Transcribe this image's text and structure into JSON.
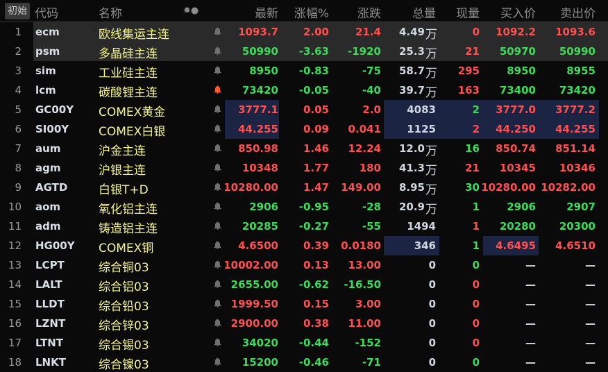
{
  "header": {
    "init": "初始",
    "code": "代码",
    "name": "名称",
    "icons": "✸●",
    "last": "最新",
    "pct": "涨幅%",
    "chg": "涨跌",
    "vol": "总量",
    "cur": "现量",
    "bid": "买入价",
    "ask": "卖出价"
  },
  "colors": {
    "up": "#ff5050",
    "down": "#3cdc5a",
    "neutral": "#d0d6e0",
    "name": "#f5f58a",
    "highlight": "#1c2444",
    "selected_row": "#2a2a2a",
    "alert_bell": "#ff5a2a"
  },
  "rows": [
    {
      "idx": "1",
      "code": "ecm",
      "name": "欧线集运主连",
      "last": "1093.7",
      "pct": "2.00",
      "chg": "21.4",
      "vol": "4.49",
      "unit": "万",
      "cur": "0",
      "bid": "1092.2",
      "ask": "1093.6",
      "c": "up",
      "cc": "up",
      "sel": true
    },
    {
      "idx": "2",
      "code": "psm",
      "name": "多晶硅主连",
      "last": "50990",
      "pct": "-3.63",
      "chg": "-1920",
      "vol": "25.3",
      "unit": "万",
      "cur": "21",
      "bid": "50970",
      "ask": "50990",
      "c": "dn",
      "cc": "up",
      "sel": true
    },
    {
      "idx": "3",
      "code": "sim",
      "name": "工业硅主连",
      "last": "8950",
      "pct": "-0.83",
      "chg": "-75",
      "vol": "58.7",
      "unit": "万",
      "cur": "295",
      "bid": "8950",
      "ask": "8955",
      "c": "dn",
      "cc": "up"
    },
    {
      "idx": "4",
      "code": "lcm",
      "name": "碳酸锂主连",
      "last": "73420",
      "pct": "-0.05",
      "chg": "-40",
      "vol": "39.7",
      "unit": "万",
      "cur": "163",
      "bid": "73400",
      "ask": "73420",
      "c": "dn",
      "cc": "up",
      "alert": true
    },
    {
      "idx": "5",
      "code": "GC00Y",
      "name": "COMEX黄金",
      "last": "3777.1",
      "pct": "0.05",
      "chg": "2.0",
      "vol": "4083",
      "unit": "",
      "cur": "2",
      "bid": "3777.0",
      "ask": "3777.2",
      "c": "up",
      "cc": "dn",
      "hl": "a"
    },
    {
      "idx": "6",
      "code": "SI00Y",
      "name": "COMEX白银",
      "last": "44.255",
      "pct": "0.09",
      "chg": "0.041",
      "vol": "1125",
      "unit": "",
      "cur": "2",
      "bid": "44.250",
      "ask": "44.255",
      "c": "up",
      "cc": "up",
      "hl": "a"
    },
    {
      "idx": "7",
      "code": "aum",
      "name": "沪金主连",
      "last": "850.98",
      "pct": "1.46",
      "chg": "12.24",
      "vol": "12.0",
      "unit": "万",
      "cur": "16",
      "bid": "850.74",
      "ask": "851.14",
      "c": "up",
      "cc": "dn"
    },
    {
      "idx": "8",
      "code": "agm",
      "name": "沪银主连",
      "last": "10348",
      "pct": "1.77",
      "chg": "180",
      "vol": "41.3",
      "unit": "万",
      "cur": "21",
      "bid": "10345",
      "ask": "10346",
      "c": "up",
      "cc": "up"
    },
    {
      "idx": "9",
      "code": "AGTD",
      "name": "白银T+D",
      "last": "10280.00",
      "pct": "1.47",
      "chg": "149.00",
      "vol": "8.95",
      "unit": "万",
      "cur": "30",
      "bid": "10280.00",
      "ask": "10282.00",
      "c": "up",
      "cc": "dn"
    },
    {
      "idx": "10",
      "code": "aom",
      "name": "氧化铝主连",
      "last": "2906",
      "pct": "-0.95",
      "chg": "-28",
      "vol": "20.9",
      "unit": "万",
      "cur": "1",
      "bid": "2906",
      "ask": "2907",
      "c": "dn",
      "cc": "dn"
    },
    {
      "idx": "11",
      "code": "adm",
      "name": "铸造铝主连",
      "last": "20285",
      "pct": "-0.27",
      "chg": "-55",
      "vol": "1494",
      "unit": "",
      "cur": "1",
      "bid": "20280",
      "ask": "20300",
      "c": "dn",
      "cc": "up"
    },
    {
      "idx": "12",
      "code": "HG00Y",
      "name": "COMEX铜",
      "last": "4.6500",
      "pct": "0.39",
      "chg": "0.0180",
      "vol": "346",
      "unit": "",
      "cur": "1",
      "bid": "4.6495",
      "ask": "4.6510",
      "c": "up",
      "cc": "dn",
      "hl": "b"
    },
    {
      "idx": "13",
      "code": "LCPT",
      "name": "综合铜03",
      "last": "10002.00",
      "pct": "0.13",
      "chg": "13.00",
      "vol": "0",
      "unit": "",
      "cur": "0",
      "bid": "—",
      "ask": "—",
      "c": "up",
      "cc": "dn"
    },
    {
      "idx": "14",
      "code": "LALT",
      "name": "综合铝03",
      "last": "2655.00",
      "pct": "-0.62",
      "chg": "-16.50",
      "vol": "0",
      "unit": "",
      "cur": "0",
      "bid": "—",
      "ask": "—",
      "c": "dn",
      "cc": "up"
    },
    {
      "idx": "15",
      "code": "LLDT",
      "name": "综合铅03",
      "last": "1999.50",
      "pct": "0.15",
      "chg": "3.00",
      "vol": "0",
      "unit": "",
      "cur": "0",
      "bid": "—",
      "ask": "—",
      "c": "up",
      "cc": "up"
    },
    {
      "idx": "16",
      "code": "LZNT",
      "name": "综合锌03",
      "last": "2900.00",
      "pct": "0.38",
      "chg": "11.00",
      "vol": "0",
      "unit": "",
      "cur": "0",
      "bid": "—",
      "ask": "—",
      "c": "up",
      "cc": "up"
    },
    {
      "idx": "17",
      "code": "LTNT",
      "name": "综合锡03",
      "last": "34020",
      "pct": "-0.44",
      "chg": "-152",
      "vol": "0",
      "unit": "",
      "cur": "0",
      "bid": "—",
      "ask": "—",
      "c": "dn",
      "cc": "up"
    },
    {
      "idx": "18",
      "code": "LNKT",
      "name": "综合镍03",
      "last": "15200",
      "pct": "-0.46",
      "chg": "-71",
      "vol": "0",
      "unit": "",
      "cur": "0",
      "bid": "—",
      "ask": "—",
      "c": "dn",
      "cc": "dn"
    }
  ]
}
